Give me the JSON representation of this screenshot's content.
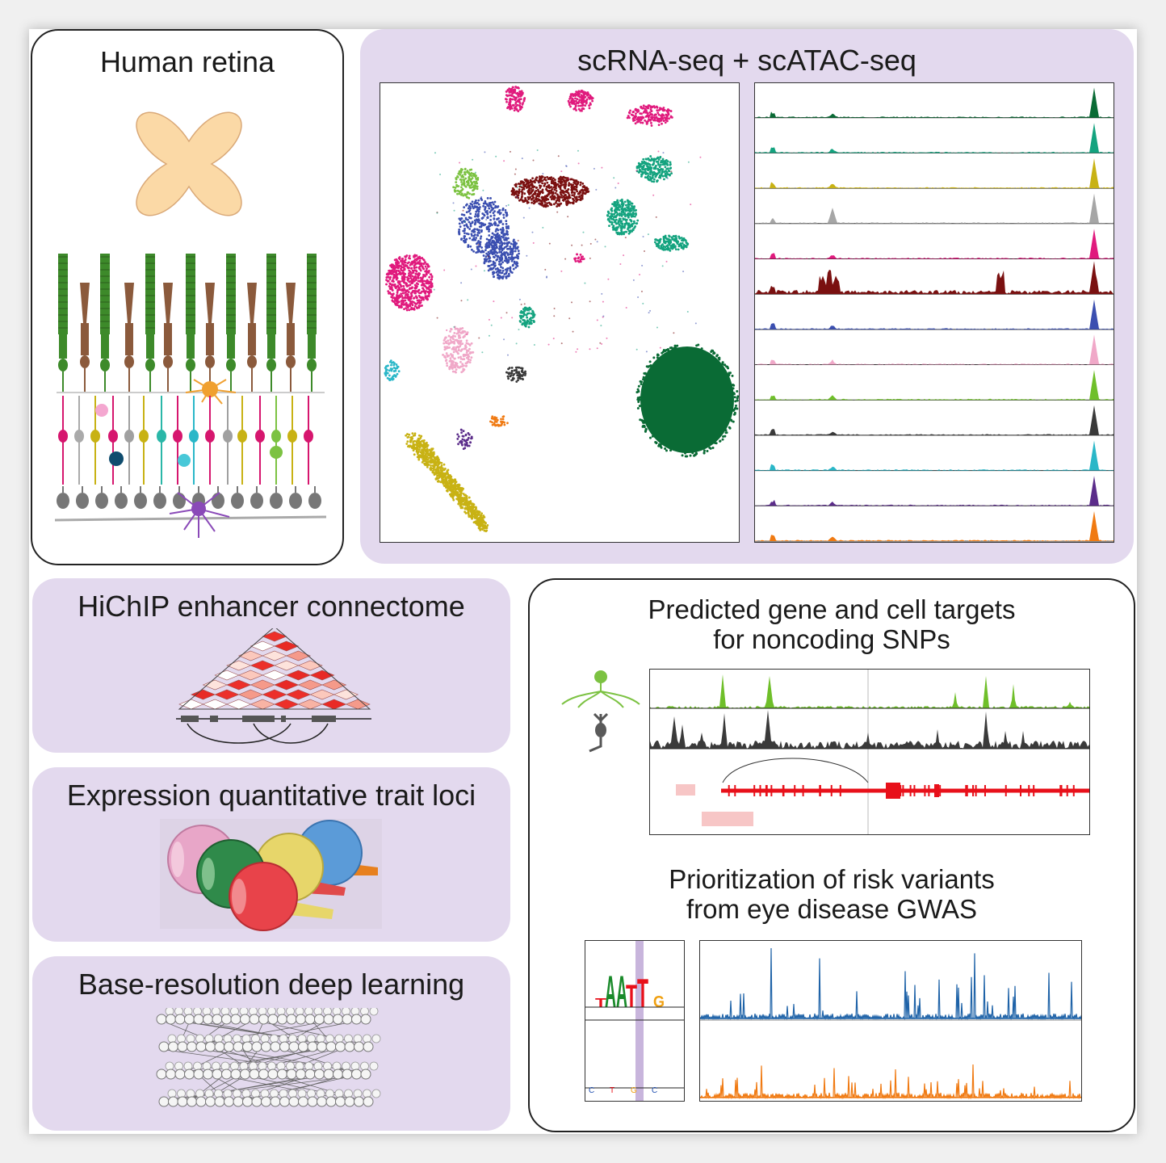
{
  "panels": {
    "retina": {
      "title": "Human retina"
    },
    "sc": {
      "title": "scRNA-seq + scATAC-seq"
    },
    "hichip": {
      "title": "HiChIP enhancer connectome"
    },
    "eqtl": {
      "title": "Expression quantitative trait loci"
    },
    "deep": {
      "title": "Base-resolution deep learning"
    },
    "targets": {
      "title_line1": "Predicted gene and cell targets",
      "title_line2": "for noncoding SNPs"
    },
    "gwas": {
      "title_line1": "Prioritization of risk variants",
      "title_line2": "from eye disease GWAS"
    }
  },
  "colors": {
    "panel_fill": "#e3d9ee",
    "track_colors": [
      "#0a6b35",
      "#14a37f",
      "#c8b214",
      "#a6a6a6",
      "#e01a7d",
      "#7a1010",
      "#3b4fb0",
      "#f0a8c8",
      "#6fbf2a",
      "#3a3a3a",
      "#2ab7c8",
      "#5b2c8a",
      "#f07a12"
    ],
    "gene_red": "#e8101a",
    "seq_blue": "#1f63a8",
    "seq_orange": "#f07a12"
  },
  "icons": [
    "retina-flatmount-icon",
    "retina-cell-layers-icon",
    "umap-plot",
    "atac-tracks",
    "hichip-triangle-icon",
    "eyeball-icons",
    "neural-network-icon",
    "cell-icons",
    "motif-logo"
  ],
  "motif_letters": [
    "T",
    "A",
    "A",
    "T",
    "T",
    "G"
  ]
}
